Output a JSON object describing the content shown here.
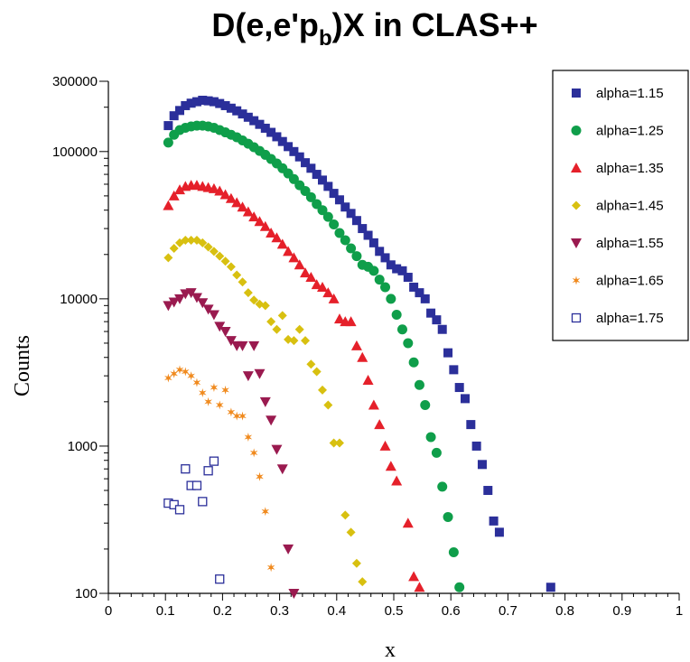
{
  "chart_data": {
    "type": "scatter",
    "title_parts": [
      "D(e,e'p",
      "b",
      ")X in CLAS++"
    ],
    "xlabel": "x",
    "ylabel": "Counts",
    "xlim": [
      0,
      1
    ],
    "ylim": [
      100,
      300000
    ],
    "y_scale": "log",
    "grid": false,
    "legend_position": "top-right",
    "x_ticks": [
      "0",
      "0.1",
      "0.2",
      "0.3",
      "0.4",
      "0.5",
      "0.6",
      "0.7",
      "0.8",
      "0.9",
      "1"
    ],
    "x_tick_values": [
      0,
      0.1,
      0.2,
      0.3,
      0.4,
      0.5,
      0.6,
      0.7,
      0.8,
      0.9,
      1
    ],
    "y_ticks": [
      "100",
      "1000",
      "10000",
      "100000",
      "300000"
    ],
    "y_tick_values": [
      100,
      1000,
      10000,
      100000,
      300000
    ],
    "series": [
      {
        "name": "alpha=1.15",
        "marker": "square",
        "color": "#2b2f9a",
        "points": [
          [
            0.105,
            150000
          ],
          [
            0.115,
            175000
          ],
          [
            0.125,
            190000
          ],
          [
            0.135,
            205000
          ],
          [
            0.145,
            213000
          ],
          [
            0.155,
            218000
          ],
          [
            0.165,
            223000
          ],
          [
            0.175,
            221000
          ],
          [
            0.185,
            218000
          ],
          [
            0.195,
            212000
          ],
          [
            0.205,
            205000
          ],
          [
            0.215,
            197000
          ],
          [
            0.225,
            189000
          ],
          [
            0.235,
            180000
          ],
          [
            0.245,
            171000
          ],
          [
            0.255,
            162000
          ],
          [
            0.265,
            153000
          ],
          [
            0.275,
            144000
          ],
          [
            0.285,
            135000
          ],
          [
            0.295,
            126000
          ],
          [
            0.305,
            117000
          ],
          [
            0.315,
            108000
          ],
          [
            0.325,
            100000
          ],
          [
            0.335,
            92000
          ],
          [
            0.345,
            84000
          ],
          [
            0.355,
            77000
          ],
          [
            0.365,
            70000
          ],
          [
            0.375,
            64000
          ],
          [
            0.385,
            58000
          ],
          [
            0.395,
            52000
          ],
          [
            0.405,
            47000
          ],
          [
            0.415,
            42000
          ],
          [
            0.425,
            38000
          ],
          [
            0.435,
            34000
          ],
          [
            0.445,
            30000
          ],
          [
            0.455,
            27000
          ],
          [
            0.465,
            24000
          ],
          [
            0.475,
            21000
          ],
          [
            0.485,
            19000
          ],
          [
            0.495,
            17000
          ],
          [
            0.505,
            16000
          ],
          [
            0.515,
            15500
          ],
          [
            0.525,
            14000
          ],
          [
            0.535,
            12000
          ],
          [
            0.545,
            11000
          ],
          [
            0.555,
            10000
          ],
          [
            0.565,
            8000
          ],
          [
            0.575,
            7200
          ],
          [
            0.585,
            6200
          ],
          [
            0.595,
            4300
          ],
          [
            0.605,
            3300
          ],
          [
            0.615,
            2500
          ],
          [
            0.625,
            2100
          ],
          [
            0.635,
            1400
          ],
          [
            0.645,
            1000
          ],
          [
            0.655,
            750
          ],
          [
            0.665,
            500
          ],
          [
            0.675,
            310
          ],
          [
            0.685,
            260
          ],
          [
            0.775,
            110
          ]
        ]
      },
      {
        "name": "alpha=1.25",
        "marker": "circle",
        "color": "#0f9e4a",
        "points": [
          [
            0.105,
            115000
          ],
          [
            0.115,
            130000
          ],
          [
            0.125,
            140000
          ],
          [
            0.135,
            145000
          ],
          [
            0.145,
            148000
          ],
          [
            0.155,
            150000
          ],
          [
            0.165,
            150000
          ],
          [
            0.175,
            148000
          ],
          [
            0.185,
            145000
          ],
          [
            0.195,
            140000
          ],
          [
            0.205,
            135000
          ],
          [
            0.215,
            130000
          ],
          [
            0.225,
            125000
          ],
          [
            0.235,
            119000
          ],
          [
            0.245,
            113000
          ],
          [
            0.255,
            107000
          ],
          [
            0.265,
            101000
          ],
          [
            0.275,
            95000
          ],
          [
            0.285,
            89000
          ],
          [
            0.295,
            83000
          ],
          [
            0.305,
            77000
          ],
          [
            0.315,
            71000
          ],
          [
            0.325,
            65000
          ],
          [
            0.335,
            59000
          ],
          [
            0.345,
            54000
          ],
          [
            0.355,
            49000
          ],
          [
            0.365,
            44000
          ],
          [
            0.375,
            40000
          ],
          [
            0.385,
            36000
          ],
          [
            0.395,
            32000
          ],
          [
            0.405,
            28000
          ],
          [
            0.415,
            25000
          ],
          [
            0.425,
            22000
          ],
          [
            0.435,
            19500
          ],
          [
            0.445,
            17000
          ],
          [
            0.455,
            16500
          ],
          [
            0.465,
            15500
          ],
          [
            0.475,
            13500
          ],
          [
            0.485,
            12000
          ],
          [
            0.495,
            10000
          ],
          [
            0.505,
            7800
          ],
          [
            0.515,
            6200
          ],
          [
            0.525,
            5000
          ],
          [
            0.535,
            3700
          ],
          [
            0.545,
            2600
          ],
          [
            0.555,
            1900
          ],
          [
            0.565,
            1150
          ],
          [
            0.575,
            900
          ],
          [
            0.585,
            530
          ],
          [
            0.595,
            330
          ],
          [
            0.605,
            190
          ],
          [
            0.615,
            110
          ]
        ]
      },
      {
        "name": "alpha=1.35",
        "marker": "triangle-up",
        "color": "#e5202a",
        "points": [
          [
            0.105,
            43000
          ],
          [
            0.115,
            50000
          ],
          [
            0.125,
            55000
          ],
          [
            0.135,
            58000
          ],
          [
            0.145,
            59000
          ],
          [
            0.155,
            59000
          ],
          [
            0.165,
            58000
          ],
          [
            0.175,
            57000
          ],
          [
            0.185,
            56000
          ],
          [
            0.195,
            54000
          ],
          [
            0.205,
            51000
          ],
          [
            0.215,
            48000
          ],
          [
            0.225,
            45000
          ],
          [
            0.235,
            42000
          ],
          [
            0.245,
            39000
          ],
          [
            0.255,
            36000
          ],
          [
            0.265,
            33500
          ],
          [
            0.275,
            31000
          ],
          [
            0.285,
            28000
          ],
          [
            0.295,
            26000
          ],
          [
            0.305,
            23500
          ],
          [
            0.315,
            21000
          ],
          [
            0.325,
            19000
          ],
          [
            0.335,
            17000
          ],
          [
            0.345,
            15000
          ],
          [
            0.355,
            14000
          ],
          [
            0.365,
            12500
          ],
          [
            0.375,
            12000
          ],
          [
            0.385,
            11000
          ],
          [
            0.395,
            10000
          ],
          [
            0.405,
            7300
          ],
          [
            0.415,
            7000
          ],
          [
            0.425,
            7000
          ],
          [
            0.435,
            4800
          ],
          [
            0.445,
            4000
          ],
          [
            0.455,
            2800
          ],
          [
            0.465,
            1900
          ],
          [
            0.475,
            1400
          ],
          [
            0.485,
            1000
          ],
          [
            0.495,
            730
          ],
          [
            0.505,
            580
          ],
          [
            0.525,
            300
          ],
          [
            0.535,
            130
          ],
          [
            0.545,
            110
          ]
        ]
      },
      {
        "name": "alpha=1.45",
        "marker": "diamond",
        "color": "#d8c010",
        "points": [
          [
            0.105,
            19000
          ],
          [
            0.115,
            22000
          ],
          [
            0.125,
            24000
          ],
          [
            0.135,
            25000
          ],
          [
            0.145,
            25000
          ],
          [
            0.155,
            25000
          ],
          [
            0.165,
            24000
          ],
          [
            0.175,
            22500
          ],
          [
            0.185,
            21000
          ],
          [
            0.195,
            19500
          ],
          [
            0.205,
            18000
          ],
          [
            0.215,
            16500
          ],
          [
            0.225,
            14500
          ],
          [
            0.235,
            13000
          ],
          [
            0.245,
            11000
          ],
          [
            0.255,
            9800
          ],
          [
            0.265,
            9200
          ],
          [
            0.275,
            9000
          ],
          [
            0.285,
            7000
          ],
          [
            0.295,
            6200
          ],
          [
            0.305,
            7700
          ],
          [
            0.315,
            5300
          ],
          [
            0.325,
            5200
          ],
          [
            0.335,
            6200
          ],
          [
            0.345,
            5200
          ],
          [
            0.355,
            3600
          ],
          [
            0.365,
            3200
          ],
          [
            0.375,
            2400
          ],
          [
            0.385,
            1900
          ],
          [
            0.395,
            1050
          ],
          [
            0.405,
            1050
          ],
          [
            0.415,
            340
          ],
          [
            0.425,
            260
          ],
          [
            0.435,
            160
          ],
          [
            0.445,
            120
          ]
        ]
      },
      {
        "name": "alpha=1.55",
        "marker": "triangle-down",
        "color": "#9a1a4f",
        "points": [
          [
            0.105,
            9000
          ],
          [
            0.115,
            9500
          ],
          [
            0.125,
            10000
          ],
          [
            0.135,
            10800
          ],
          [
            0.145,
            11000
          ],
          [
            0.155,
            10200
          ],
          [
            0.165,
            9400
          ],
          [
            0.175,
            8500
          ],
          [
            0.185,
            7800
          ],
          [
            0.195,
            6500
          ],
          [
            0.205,
            6000
          ],
          [
            0.215,
            5200
          ],
          [
            0.225,
            4800
          ],
          [
            0.235,
            4800
          ],
          [
            0.245,
            3000
          ],
          [
            0.255,
            4800
          ],
          [
            0.265,
            3100
          ],
          [
            0.275,
            2000
          ],
          [
            0.285,
            1500
          ],
          [
            0.295,
            950
          ],
          [
            0.305,
            700
          ],
          [
            0.315,
            200
          ],
          [
            0.325,
            100
          ]
        ]
      },
      {
        "name": "alpha=1.65",
        "marker": "star",
        "color": "#f08a1e",
        "points": [
          [
            0.105,
            2900
          ],
          [
            0.115,
            3100
          ],
          [
            0.125,
            3300
          ],
          [
            0.135,
            3200
          ],
          [
            0.145,
            3000
          ],
          [
            0.155,
            2700
          ],
          [
            0.165,
            2300
          ],
          [
            0.175,
            2000
          ],
          [
            0.185,
            2500
          ],
          [
            0.195,
            1900
          ],
          [
            0.205,
            2400
          ],
          [
            0.215,
            1700
          ],
          [
            0.225,
            1600
          ],
          [
            0.235,
            1600
          ],
          [
            0.245,
            1150
          ],
          [
            0.255,
            900
          ],
          [
            0.265,
            620
          ],
          [
            0.275,
            360
          ],
          [
            0.285,
            150
          ]
        ]
      },
      {
        "name": "alpha=1.75",
        "marker": "open-square",
        "color": "#2b2f9a",
        "points": [
          [
            0.105,
            410
          ],
          [
            0.115,
            400
          ],
          [
            0.125,
            370
          ],
          [
            0.135,
            700
          ],
          [
            0.145,
            540
          ],
          [
            0.155,
            540
          ],
          [
            0.165,
            420
          ],
          [
            0.175,
            680
          ],
          [
            0.185,
            790
          ],
          [
            0.195,
            125
          ]
        ]
      }
    ]
  }
}
